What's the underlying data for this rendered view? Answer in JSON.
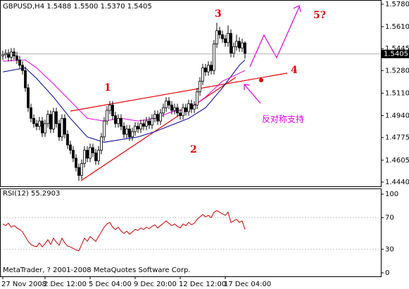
{
  "chart_data": [
    {
      "type": "candlestick",
      "title": "GBPUSD,H4 1.5488 1.5500 1.5370 1.5405",
      "categories": [
        "27 Nov 2008",
        null,
        null,
        null,
        null,
        null,
        null,
        null,
        null,
        null,
        null,
        null,
        null,
        null,
        null,
        "2 Dec 12:00",
        null,
        null,
        null,
        null,
        null,
        null,
        null,
        null,
        null,
        null,
        null,
        null,
        null,
        null,
        null,
        "5 Dec 04:00",
        null,
        null,
        null,
        null,
        null,
        null,
        null,
        null,
        null,
        null,
        null,
        null,
        null,
        null,
        null,
        "9 Dec 20:00",
        null,
        null,
        null,
        null,
        null,
        null,
        null,
        null,
        null,
        null,
        null,
        null,
        null,
        null,
        null,
        "12 Dec 12:00",
        null,
        null,
        null,
        null,
        null,
        null,
        null,
        null,
        null,
        null,
        null,
        null,
        null,
        null,
        null,
        "17 Dec 04:00",
        null,
        null,
        null,
        null,
        null,
        null,
        null
      ],
      "ohlc": [
        [
          1.539,
          1.543,
          1.536,
          1.54
        ],
        [
          1.54,
          1.544,
          1.537,
          1.541
        ],
        [
          1.541,
          1.544,
          1.535,
          1.538
        ],
        [
          1.538,
          1.545,
          1.535,
          1.542
        ],
        [
          1.542,
          1.545,
          1.536,
          1.539
        ],
        [
          1.539,
          1.542,
          1.533,
          1.536
        ],
        [
          1.536,
          1.539,
          1.529,
          1.532
        ],
        [
          1.532,
          1.535,
          1.525,
          1.528
        ],
        [
          1.528,
          1.531,
          1.512,
          1.515
        ],
        [
          1.515,
          1.518,
          1.497,
          1.5
        ],
        [
          1.5,
          1.503,
          1.489,
          1.492
        ],
        [
          1.492,
          1.495,
          1.485,
          1.488
        ],
        [
          1.488,
          1.491,
          1.483,
          1.486
        ],
        [
          1.486,
          1.493,
          1.483,
          1.49
        ],
        [
          1.49,
          1.493,
          1.478,
          1.481
        ],
        [
          1.481,
          1.491,
          1.478,
          1.488
        ],
        [
          1.488,
          1.498,
          1.485,
          1.495
        ],
        [
          1.495,
          1.498,
          1.481,
          1.484
        ],
        [
          1.484,
          1.5,
          1.481,
          1.497
        ],
        [
          1.497,
          1.5,
          1.485,
          1.488
        ],
        [
          1.488,
          1.491,
          1.475,
          1.478
        ],
        [
          1.478,
          1.495,
          1.475,
          1.492
        ],
        [
          1.492,
          1.495,
          1.477,
          1.48
        ],
        [
          1.48,
          1.483,
          1.469,
          1.472
        ],
        [
          1.472,
          1.475,
          1.465,
          1.468
        ],
        [
          1.468,
          1.471,
          1.459,
          1.462
        ],
        [
          1.462,
          1.465,
          1.452,
          1.455
        ],
        [
          1.455,
          1.458,
          1.445,
          1.449
        ],
        [
          1.449,
          1.461,
          1.446,
          1.458
        ],
        [
          1.458,
          1.471,
          1.455,
          1.468
        ],
        [
          1.468,
          1.471,
          1.459,
          1.462
        ],
        [
          1.462,
          1.473,
          1.459,
          1.47
        ],
        [
          1.47,
          1.473,
          1.463,
          1.466
        ],
        [
          1.466,
          1.469,
          1.457,
          1.46
        ],
        [
          1.46,
          1.471,
          1.457,
          1.468
        ],
        [
          1.468,
          1.481,
          1.465,
          1.478
        ],
        [
          1.478,
          1.493,
          1.475,
          1.49
        ],
        [
          1.49,
          1.501,
          1.487,
          1.498
        ],
        [
          1.498,
          1.505,
          1.495,
          1.502
        ],
        [
          1.502,
          1.505,
          1.491,
          1.494
        ],
        [
          1.494,
          1.497,
          1.485,
          1.488
        ],
        [
          1.488,
          1.495,
          1.485,
          1.492
        ],
        [
          1.492,
          1.495,
          1.483,
          1.486
        ],
        [
          1.486,
          1.489,
          1.477,
          1.48
        ],
        [
          1.48,
          1.487,
          1.477,
          1.484
        ],
        [
          1.484,
          1.487,
          1.475,
          1.478
        ],
        [
          1.478,
          1.485,
          1.475,
          1.482
        ],
        [
          1.482,
          1.489,
          1.479,
          1.486
        ],
        [
          1.486,
          1.489,
          1.481,
          1.484
        ],
        [
          1.484,
          1.491,
          1.481,
          1.488
        ],
        [
          1.488,
          1.491,
          1.483,
          1.486
        ],
        [
          1.486,
          1.493,
          1.483,
          1.49
        ],
        [
          1.49,
          1.493,
          1.484,
          1.487
        ],
        [
          1.487,
          1.495,
          1.484,
          1.492
        ],
        [
          1.492,
          1.498,
          1.489,
          1.495
        ],
        [
          1.495,
          1.498,
          1.487,
          1.49
        ],
        [
          1.49,
          1.499,
          1.487,
          1.496
        ],
        [
          1.496,
          1.503,
          1.493,
          1.5
        ],
        [
          1.5,
          1.508,
          1.497,
          1.505
        ],
        [
          1.505,
          1.508,
          1.499,
          1.502
        ],
        [
          1.502,
          1.505,
          1.495,
          1.498
        ],
        [
          1.498,
          1.503,
          1.495,
          1.5
        ],
        [
          1.5,
          1.503,
          1.493,
          1.496
        ],
        [
          1.496,
          1.499,
          1.491,
          1.494
        ],
        [
          1.494,
          1.503,
          1.491,
          1.5
        ],
        [
          1.5,
          1.503,
          1.494,
          1.497
        ],
        [
          1.497,
          1.506,
          1.494,
          1.503
        ],
        [
          1.503,
          1.506,
          1.496,
          1.499
        ],
        [
          1.499,
          1.505,
          1.496,
          1.502
        ],
        [
          1.502,
          1.515,
          1.499,
          1.512
        ],
        [
          1.512,
          1.523,
          1.509,
          1.52
        ],
        [
          1.52,
          1.533,
          1.517,
          1.53
        ],
        [
          1.53,
          1.533,
          1.524,
          1.527
        ],
        [
          1.527,
          1.535,
          1.524,
          1.532
        ],
        [
          1.532,
          1.535,
          1.525,
          1.528
        ],
        [
          1.528,
          1.551,
          1.525,
          1.548
        ],
        [
          1.548,
          1.564,
          1.545,
          1.558
        ],
        [
          1.558,
          1.561,
          1.552,
          1.555
        ],
        [
          1.555,
          1.558,
          1.549,
          1.552
        ],
        [
          1.552,
          1.555,
          1.546,
          1.549
        ],
        [
          1.549,
          1.562,
          1.546,
          1.556
        ],
        [
          1.556,
          1.559,
          1.538,
          1.541
        ],
        [
          1.541,
          1.549,
          1.538,
          1.546
        ],
        [
          1.546,
          1.555,
          1.543,
          1.55
        ],
        [
          1.55,
          1.553,
          1.542,
          1.545
        ],
        [
          1.545,
          1.552,
          1.542,
          1.5488
        ],
        [
          1.5488,
          1.55,
          1.537,
          1.5405
        ]
      ],
      "series": [
        {
          "color": "#00008b",
          "x": [
            0,
            8,
            12,
            18,
            24,
            30,
            36,
            42,
            48,
            54,
            60,
            66,
            72,
            78,
            84,
            86
          ],
          "values": [
            1.527,
            1.53,
            1.522,
            1.508,
            1.492,
            1.478,
            1.474,
            1.476,
            1.478,
            1.482,
            1.487,
            1.492,
            1.5,
            1.515,
            1.532,
            1.536
          ]
        },
        {
          "color": "#e000e0",
          "x": [
            0,
            8,
            12,
            18,
            24,
            30,
            36,
            42,
            48,
            54,
            60,
            66,
            72,
            78,
            84,
            86
          ],
          "values": [
            1.535,
            1.536,
            1.53,
            1.518,
            1.505,
            1.492,
            1.49,
            1.492,
            1.49,
            1.492,
            1.497,
            1.499,
            1.508,
            1.52,
            1.526,
            1.528
          ]
        }
      ],
      "ylim": [
        1.4408,
        1.5806
      ],
      "yticks": [
        {
          "value": 1.578,
          "label": "1.5780"
        },
        {
          "value": 1.561,
          "label": "1.5610"
        },
        1.5445,
        {
          "value": 1.528,
          "label": "1.5280"
        },
        {
          "value": 1.511,
          "label": "1.5110"
        },
        {
          "value": 1.494,
          "label": "1.4940"
        },
        1.4775,
        1.4605,
        {
          "value": 1.444,
          "label": "1.4440"
        }
      ],
      "annotations": [
        "1",
        "2",
        "3",
        "4",
        "5?",
        "反对称支持"
      ]
    },
    {
      "type": "line",
      "title": "RSI(12) 55.2903",
      "color": "#cc0000",
      "values": [
        62,
        60,
        63,
        58,
        60,
        57,
        55,
        52,
        46,
        40,
        36,
        34,
        33,
        38,
        33,
        37,
        42,
        36,
        44,
        39,
        35,
        44,
        38,
        34,
        33,
        31,
        29,
        28,
        36,
        44,
        40,
        46,
        43,
        40,
        46,
        52,
        58,
        62,
        64,
        58,
        55,
        58,
        53,
        50,
        53,
        49,
        52,
        55,
        54,
        57,
        55,
        58,
        56,
        59,
        61,
        57,
        60,
        63,
        66,
        63,
        60,
        62,
        59,
        57,
        62,
        60,
        64,
        61,
        63,
        68,
        71,
        74,
        71,
        73,
        70,
        77,
        79,
        77,
        75,
        73,
        77,
        64,
        66,
        68,
        64,
        66,
        55.2903
      ],
      "ylim": [
        -4.5,
        106.3
      ],
      "yticks": [
        100,
        70,
        30,
        0
      ]
    }
  ],
  "footer": "MetaTrader, ? 2001-2008 MetaQuotes Software Corp."
}
